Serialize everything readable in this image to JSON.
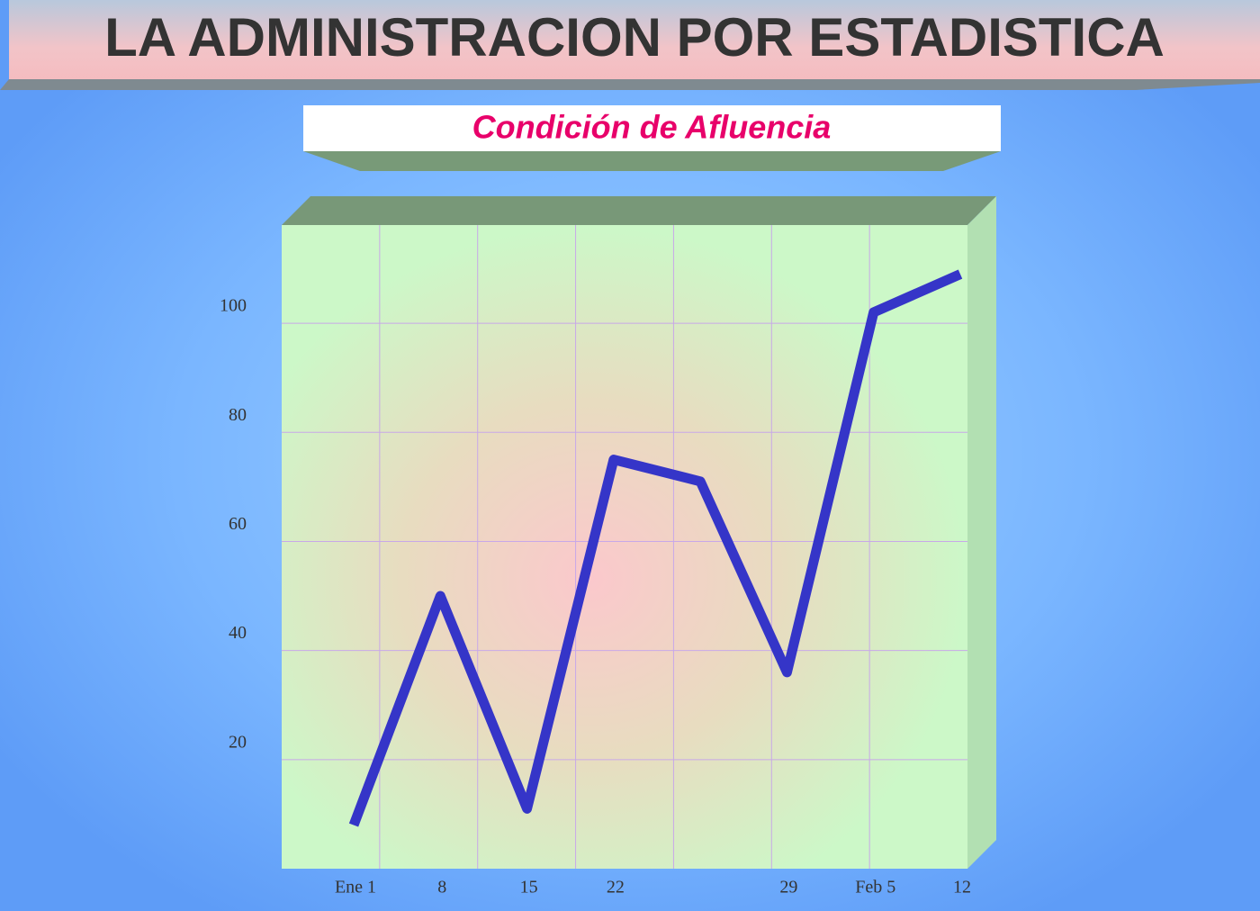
{
  "header": {
    "title": "LA ADMINISTRACION POR ESTADISTICA"
  },
  "chart_data": {
    "type": "line",
    "title": "Condición de Afluencia",
    "categories": [
      "Ene 1",
      "8",
      "15",
      "22",
      null,
      "29",
      "Feb 5",
      "12"
    ],
    "values": [
      8,
      50,
      11,
      75,
      71,
      36,
      102,
      109
    ],
    "color": "#3535c8",
    "ylim": [
      0,
      118
    ],
    "yticks": [
      20,
      40,
      60,
      80,
      100
    ],
    "grid": true
  }
}
